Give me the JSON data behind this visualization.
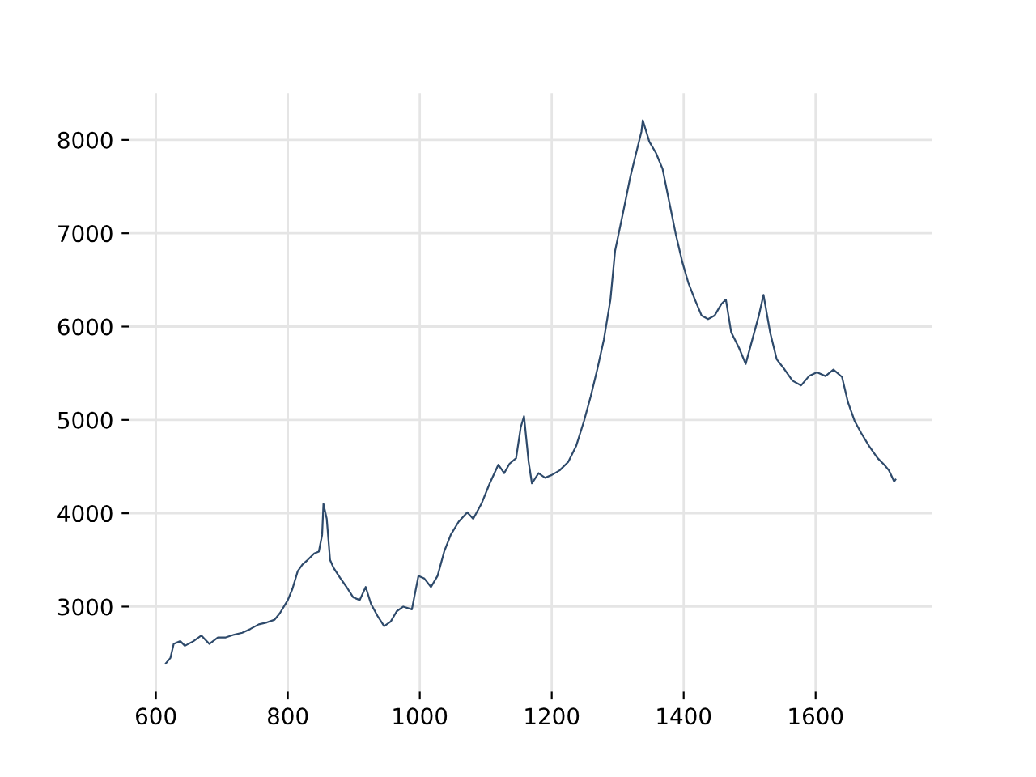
{
  "chart_data": {
    "type": "line",
    "x": [
      615,
      622,
      627,
      637,
      644,
      657,
      669,
      681,
      694,
      706,
      719,
      731,
      743,
      756,
      768,
      780,
      788,
      800,
      807,
      815,
      822,
      830,
      840,
      847,
      852,
      854,
      859,
      864,
      869,
      879,
      889,
      899,
      909,
      918,
      926,
      936,
      946,
      956,
      965,
      975,
      988,
      998,
      1007,
      1017,
      1027,
      1037,
      1047,
      1059,
      1072,
      1081,
      1094,
      1106,
      1119,
      1128,
      1136,
      1146,
      1153,
      1158,
      1165,
      1170,
      1180,
      1190,
      1200,
      1212,
      1225,
      1237,
      1249,
      1259,
      1269,
      1279,
      1289,
      1296,
      1309,
      1319,
      1328,
      1336,
      1338,
      1348,
      1358,
      1368,
      1378,
      1388,
      1398,
      1407,
      1417,
      1427,
      1437,
      1447,
      1457,
      1464,
      1472,
      1484,
      1494,
      1504,
      1514,
      1521,
      1531,
      1541,
      1553,
      1565,
      1578,
      1590,
      1602,
      1615,
      1627,
      1640,
      1649,
      1659,
      1669,
      1681,
      1694,
      1704,
      1711,
      1719,
      1721
    ],
    "series": [
      {
        "color": "#2e4a6b",
        "values": [
          2390,
          2450,
          2600,
          2630,
          2580,
          2630,
          2690,
          2600,
          2670,
          2670,
          2700,
          2720,
          2760,
          2810,
          2830,
          2860,
          2930,
          3070,
          3190,
          3380,
          3450,
          3500,
          3570,
          3590,
          3770,
          4100,
          3940,
          3500,
          3420,
          3310,
          3210,
          3100,
          3070,
          3210,
          3030,
          2900,
          2790,
          2840,
          2950,
          3000,
          2970,
          3330,
          3300,
          3210,
          3330,
          3590,
          3770,
          3910,
          4010,
          3940,
          4110,
          4320,
          4520,
          4430,
          4530,
          4590,
          4920,
          5040,
          4550,
          4320,
          4430,
          4380,
          4410,
          4460,
          4550,
          4720,
          4990,
          5250,
          5540,
          5860,
          6290,
          6810,
          7250,
          7600,
          7860,
          8090,
          8210,
          7980,
          7860,
          7690,
          7340,
          6990,
          6690,
          6470,
          6290,
          6120,
          6080,
          6120,
          6240,
          6290,
          5940,
          5770,
          5600,
          5860,
          6120,
          6340,
          5940,
          5650,
          5540,
          5420,
          5370,
          5470,
          5510,
          5470,
          5540,
          5460,
          5190,
          4990,
          4860,
          4720,
          4590,
          4520,
          4460,
          4340,
          4360
        ]
      }
    ],
    "xlim": [
      560,
      1777
    ],
    "ylim": [
      2090,
      8500
    ],
    "xticks": [
      600,
      800,
      1000,
      1200,
      1400,
      1600
    ],
    "yticks": [
      3000,
      4000,
      5000,
      6000,
      7000,
      8000
    ],
    "grid": true,
    "legend": false,
    "marker": "none",
    "line_style": "solid"
  }
}
